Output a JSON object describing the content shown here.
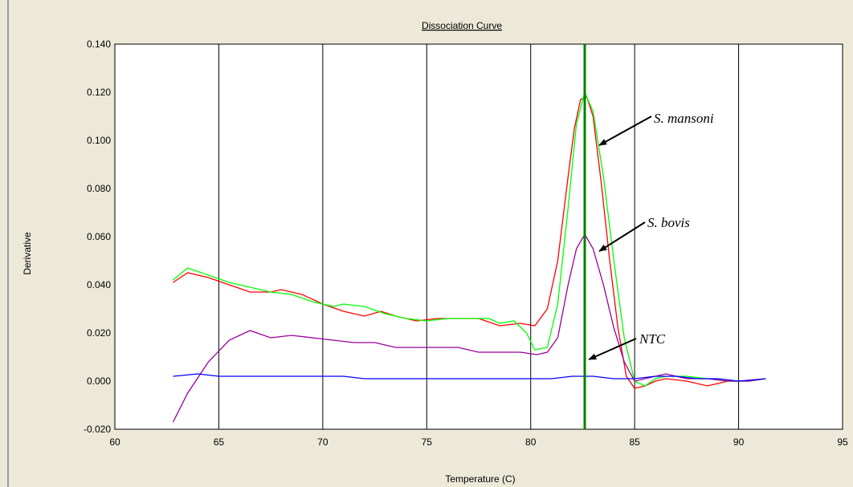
{
  "chart_data": {
    "type": "line",
    "title": "Dissociation Curve",
    "xlabel": "Temperature (C)",
    "ylabel": "Derivative",
    "xlim": [
      60,
      95
    ],
    "ylim": [
      -0.02,
      0.14
    ],
    "x_ticks": [
      "60",
      "65",
      "70",
      "75",
      "80",
      "85",
      "90",
      "95"
    ],
    "y_ticks": [
      "-0.020",
      "0.000",
      "0.020",
      "0.040",
      "0.060",
      "0.080",
      "0.100",
      "0.120",
      "0.140"
    ],
    "grid": "vertical",
    "colors": {
      "background": "#ece9d8",
      "plot": "#ffffff",
      "marker": "#008000"
    },
    "vertical_marker_x": 82.6,
    "series": [
      {
        "color": "#ff0000",
        "x": [
          62.8,
          63.5,
          64.5,
          65.5,
          66.5,
          67.5,
          68,
          69,
          70,
          71,
          72,
          72.8,
          73.5,
          74.5,
          75.5,
          76.5,
          77.5,
          78.5,
          79.5,
          80.2,
          80.8,
          81.3,
          81.8,
          82.1,
          82.4,
          82.7,
          83,
          83.4,
          83.8,
          84.2,
          84.6,
          85,
          85.5,
          86,
          86.5,
          87.5,
          88.5,
          89.5,
          90.5,
          91.3
        ],
        "y": [
          0.041,
          0.045,
          0.043,
          0.04,
          0.037,
          0.037,
          0.038,
          0.036,
          0.032,
          0.029,
          0.027,
          0.029,
          0.027,
          0.025,
          0.026,
          0.026,
          0.026,
          0.023,
          0.024,
          0.023,
          0.03,
          0.05,
          0.085,
          0.105,
          0.117,
          0.118,
          0.11,
          0.082,
          0.05,
          0.022,
          0.002,
          -0.003,
          -0.002,
          0,
          0.001,
          0,
          -0.002,
          0,
          0,
          0.001
        ]
      },
      {
        "color": "#00ff00",
        "x": [
          62.8,
          63.5,
          64.5,
          65.5,
          66.5,
          67.5,
          68.5,
          69.5,
          70.5,
          71,
          72,
          73,
          74,
          75,
          76,
          77,
          78,
          78.5,
          79.2,
          79.8,
          80.2,
          80.8,
          81.3,
          81.8,
          82.2,
          82.6,
          83,
          83.5,
          84,
          84.5,
          85,
          85.5,
          86,
          86.5,
          87.5,
          88.5,
          89.5,
          90.5,
          91.3
        ],
        "y": [
          0.042,
          0.047,
          0.044,
          0.041,
          0.039,
          0.037,
          0.036,
          0.033,
          0.031,
          0.032,
          0.031,
          0.028,
          0.026,
          0.025,
          0.026,
          0.026,
          0.026,
          0.024,
          0.025,
          0.02,
          0.013,
          0.014,
          0.032,
          0.072,
          0.107,
          0.12,
          0.112,
          0.085,
          0.05,
          0.018,
          0,
          -0.002,
          0.001,
          0.002,
          0.002,
          0.001,
          0,
          0,
          0.001
        ]
      },
      {
        "color": "#990099",
        "x": [
          62.8,
          63.5,
          64.5,
          65.5,
          66.5,
          67.5,
          68.5,
          69.5,
          70.5,
          71.5,
          72.5,
          73.5,
          74.5,
          75.5,
          76.5,
          77.5,
          78.5,
          79.5,
          80.3,
          80.8,
          81.3,
          81.8,
          82.2,
          82.6,
          83,
          83.5,
          84,
          84.5,
          85,
          85.5,
          86,
          86.5,
          87.5,
          88.5,
          89.5,
          90.5,
          91.3
        ],
        "y": [
          -0.017,
          -0.005,
          0.008,
          0.017,
          0.021,
          0.018,
          0.019,
          0.018,
          0.017,
          0.016,
          0.016,
          0.014,
          0.014,
          0.014,
          0.014,
          0.012,
          0.012,
          0.012,
          0.011,
          0.012,
          0.018,
          0.04,
          0.055,
          0.061,
          0.055,
          0.04,
          0.022,
          0.008,
          0,
          0.001,
          0.002,
          0.003,
          0.001,
          0.001,
          0,
          0,
          0.001
        ]
      },
      {
        "color": "#0000ff",
        "x": [
          62.8,
          64,
          65,
          66,
          67,
          68,
          69,
          70,
          71,
          72,
          73,
          74,
          75,
          76,
          77,
          78,
          79,
          80,
          81,
          82,
          82.5,
          83,
          84,
          85,
          86,
          87,
          88,
          89,
          90,
          91.3
        ],
        "y": [
          0.002,
          0.003,
          0.002,
          0.002,
          0.002,
          0.002,
          0.002,
          0.002,
          0.002,
          0.001,
          0.001,
          0.001,
          0.001,
          0.001,
          0.001,
          0.001,
          0.001,
          0.001,
          0.001,
          0.002,
          0.002,
          0.002,
          0.001,
          0.001,
          0.002,
          0.002,
          0.001,
          0.001,
          0,
          0.001
        ]
      }
    ],
    "annotations": [
      {
        "text": "S. mansoni",
        "arrow_to": [
          83.3,
          0.098
        ]
      },
      {
        "text": "S. bovis",
        "arrow_to": [
          83.3,
          0.054
        ]
      },
      {
        "text": "NTC",
        "arrow_to": [
          82.8,
          0.009
        ]
      }
    ]
  }
}
